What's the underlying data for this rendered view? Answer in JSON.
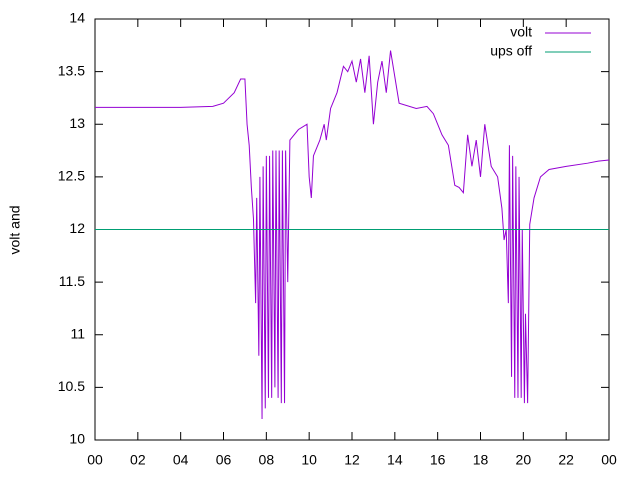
{
  "chart_data": {
    "type": "line",
    "ylabel": "volt and",
    "xlim": [
      0,
      24
    ],
    "xticks": [
      {
        "value": 0,
        "label": "00"
      },
      {
        "value": 2,
        "label": "02"
      },
      {
        "value": 4,
        "label": "04"
      },
      {
        "value": 6,
        "label": "06"
      },
      {
        "value": 8,
        "label": "08"
      },
      {
        "value": 10,
        "label": "10"
      },
      12,
      14,
      16,
      18,
      20,
      22,
      {
        "value": 24,
        "label": "00"
      }
    ],
    "ylim": [
      10,
      14
    ],
    "yticks": [
      10,
      10.5,
      11,
      11.5,
      12,
      12.5,
      13,
      13.5,
      14
    ],
    "legend": "top-right",
    "series": [
      {
        "name": "volt",
        "color": "#9400d3",
        "x": [
          0,
          2,
          4,
          5.5,
          6,
          6.5,
          6.8,
          7.0,
          7.1,
          7.2,
          7.3,
          7.4,
          7.5,
          7.55,
          7.65,
          7.7,
          7.8,
          7.85,
          7.95,
          8.0,
          8.1,
          8.15,
          8.25,
          8.3,
          8.4,
          8.45,
          8.55,
          8.6,
          8.7,
          8.75,
          8.85,
          8.9,
          9.0,
          9.1,
          9.5,
          9.9,
          10.0,
          10.1,
          10.2,
          10.5,
          10.7,
          10.8,
          11.0,
          11.3,
          11.6,
          11.8,
          12.0,
          12.2,
          12.4,
          12.6,
          12.8,
          13.0,
          13.2,
          13.4,
          13.6,
          13.8,
          14.0,
          14.2,
          15,
          15.5,
          15.8,
          16.2,
          16.5,
          16.8,
          17.0,
          17.2,
          17.4,
          17.6,
          17.8,
          18.0,
          18.2,
          18.5,
          18.8,
          19.0,
          19.1,
          19.2,
          19.3,
          19.35,
          19.45,
          19.5,
          19.6,
          19.65,
          19.75,
          19.8,
          19.9,
          19.95,
          20.05,
          20.1,
          20.2,
          20.3,
          20.5,
          20.8,
          21.2,
          22,
          23,
          23.5,
          24
        ],
        "values": [
          13.16,
          13.16,
          13.16,
          13.17,
          13.2,
          13.3,
          13.43,
          13.43,
          13.0,
          12.8,
          12.4,
          12.1,
          11.3,
          12.3,
          10.8,
          12.5,
          10.2,
          12.6,
          10.3,
          12.7,
          10.4,
          12.7,
          10.4,
          12.75,
          10.5,
          12.75,
          10.4,
          12.75,
          10.35,
          12.75,
          10.35,
          12.75,
          11.5,
          12.85,
          12.95,
          13.0,
          12.5,
          12.3,
          12.7,
          12.85,
          13.0,
          12.85,
          13.15,
          13.3,
          13.55,
          13.5,
          13.6,
          13.4,
          13.62,
          13.3,
          13.65,
          13.0,
          13.4,
          13.6,
          13.3,
          13.7,
          13.45,
          13.2,
          13.15,
          13.17,
          13.1,
          12.9,
          12.8,
          12.42,
          12.4,
          12.35,
          12.9,
          12.6,
          12.85,
          12.5,
          13.0,
          12.6,
          12.5,
          12.2,
          11.9,
          12.0,
          11.3,
          12.8,
          10.6,
          12.7,
          10.4,
          12.6,
          10.4,
          12.5,
          10.4,
          12.0,
          10.35,
          11.2,
          10.35,
          12.05,
          12.3,
          12.5,
          12.57,
          12.6,
          12.63,
          12.65,
          12.66
        ]
      },
      {
        "name": "ups off",
        "color": "#009e73",
        "x": [
          0,
          24
        ],
        "values": [
          12,
          12
        ]
      }
    ]
  }
}
